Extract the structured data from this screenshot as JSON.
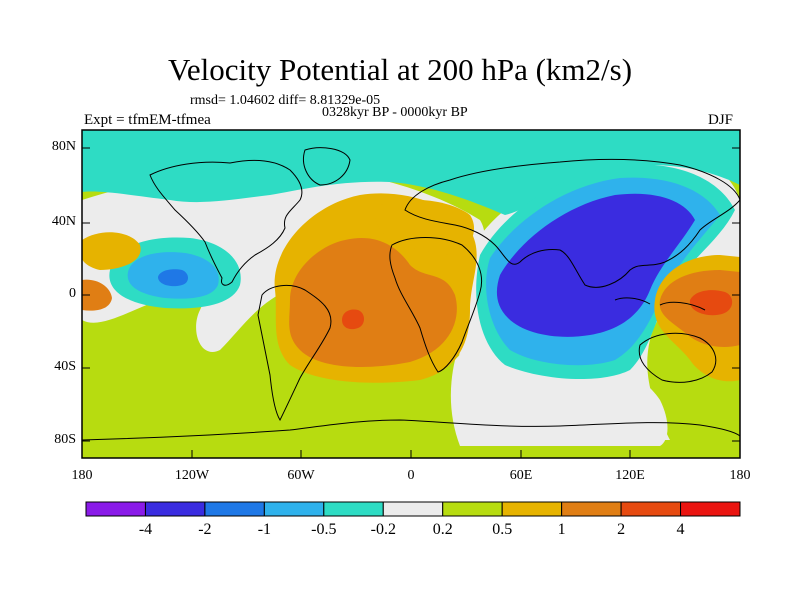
{
  "title": "Velocity Potential at 200 hPa (km2/s)",
  "subtitle_stats": "rmsd= 1.04602 diff= 8.81329e-05",
  "subtitle_period": "0328kyr BP - 0000kyr BP",
  "left_label": "Expt = tfmEM-tfmea",
  "right_label": "DJF",
  "lat_ticks": [
    "80N",
    "40N",
    "0",
    "40S",
    "80S"
  ],
  "lon_ticks": [
    "180",
    "120W",
    "60W",
    "0",
    "60E",
    "120E",
    "180"
  ],
  "colorbar": {
    "colors": [
      "#8a1be8",
      "#3a2ce0",
      "#1f78e6",
      "#2fb2ec",
      "#2edcc4",
      "#ececec",
      "#b7dc10",
      "#e6b300",
      "#e07e14",
      "#e64a10",
      "#ea1410"
    ],
    "labels": [
      "-4",
      "-2",
      "-1",
      "-0.5",
      "-0.2",
      "0.2",
      "0.5",
      "1",
      "2",
      "4"
    ]
  },
  "palette": {
    "background_positive_weak": "#b7dc10",
    "near_zero": "#ececec",
    "negative_weak": "#2edcc4",
    "negative_mid": "#2fb2ec",
    "negative_strong": "#1f78e6",
    "negative_max": "#3a2ce0",
    "positive_mid": "#e6b300",
    "positive_strong": "#e07e14",
    "positive_max": "#e64a10"
  }
}
